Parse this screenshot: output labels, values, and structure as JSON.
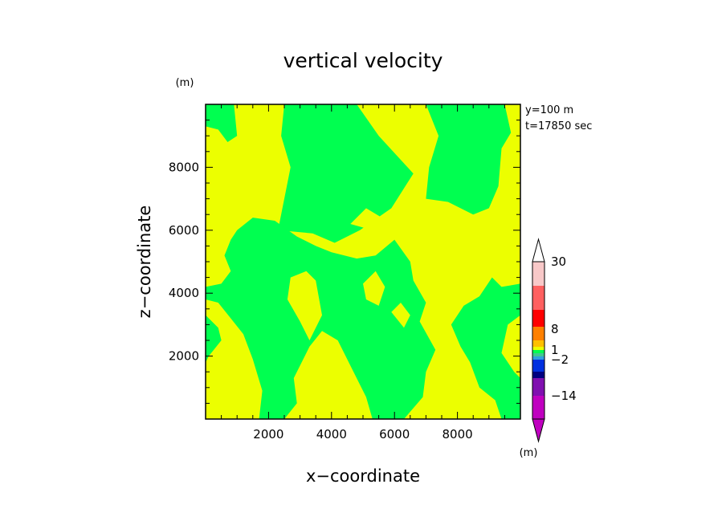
{
  "chart_data": {
    "type": "heatmap",
    "title": "vertical velocity",
    "xlabel": "x−coordinate",
    "ylabel": "z−coordinate",
    "x_unit": "(m)",
    "y_unit": "(m)",
    "annotations": [
      "y=100  m",
      "t=17850 sec"
    ],
    "xlim": [
      0,
      10000
    ],
    "ylim": [
      0,
      10000
    ],
    "x_ticks": [
      2000,
      4000,
      6000,
      8000
    ],
    "y_ticks": [
      2000,
      4000,
      6000,
      8000
    ],
    "x_tick_labels": [
      "2000",
      "4000",
      "6000",
      "8000"
    ],
    "y_tick_labels": [
      "2000",
      "4000",
      "6000",
      "8000"
    ],
    "colorbar": {
      "unit": "(m)",
      "labels": [
        {
          "text": "30",
          "value": 30
        },
        {
          "text": "8",
          "value": 8
        },
        {
          "text": "1",
          "value": 1
        },
        {
          "text": "−2",
          "value": -2
        },
        {
          "text": "−14",
          "value": -14
        }
      ],
      "colors": [
        "#c000c0",
        "#8010b0",
        "#000080",
        "#0030e0",
        "#30a0e0",
        "#40c890",
        "#00ff50",
        "#ecff00",
        "#ffc000",
        "#ff8000",
        "#ff0000",
        "#ff6060",
        "#ffb0b0",
        "#f8c8c8"
      ],
      "extend": "both"
    },
    "field_colors": {
      "positive": "#ecff00",
      "negative": "#00ff50"
    }
  }
}
